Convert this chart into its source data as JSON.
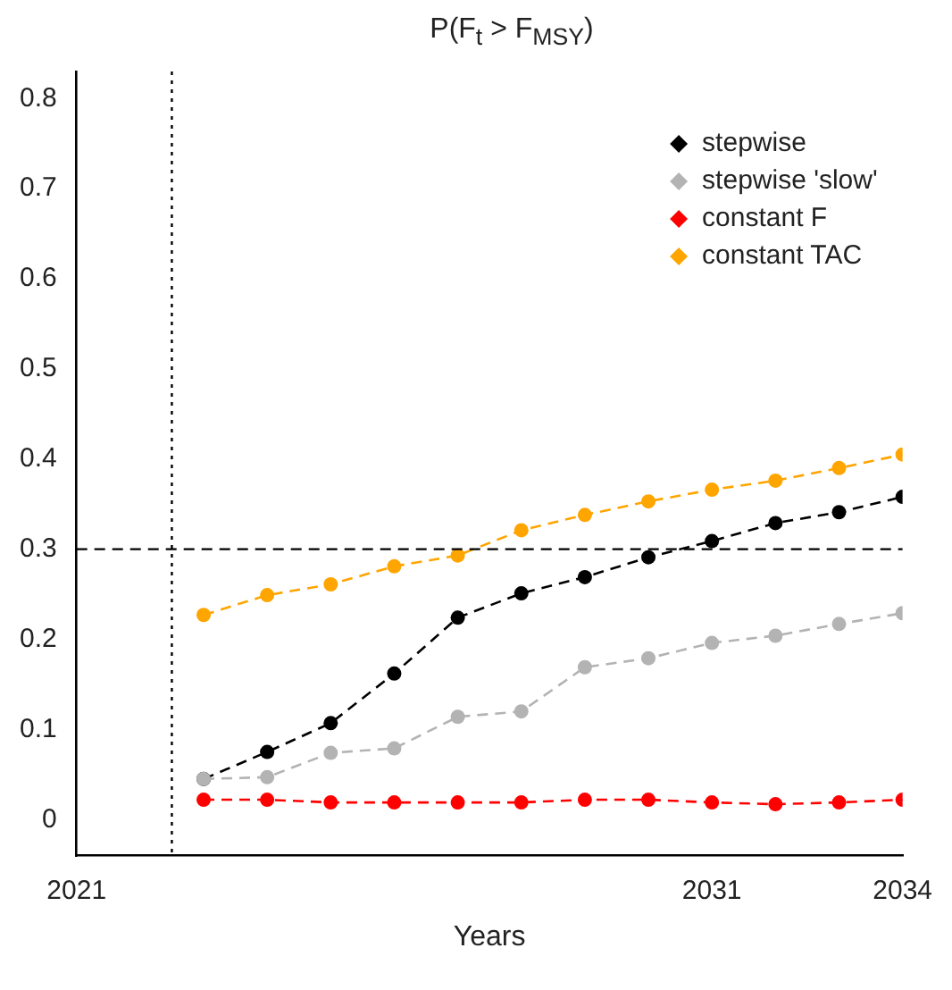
{
  "chart_data": {
    "type": "line",
    "title": "P(F$_{t}$ > F$_{MSY}$)",
    "xlabel": "Years",
    "x": [
      2023,
      2024,
      2025,
      2026,
      2027,
      2028,
      2029,
      2030,
      2031,
      2032,
      2033,
      2034
    ],
    "series": [
      {
        "name": "stepwise",
        "color": "#000000",
        "values": [
          0.045,
          0.075,
          0.107,
          0.162,
          0.224,
          0.251,
          0.269,
          0.291,
          0.309,
          0.329,
          0.341,
          0.358
        ]
      },
      {
        "name": "stepwise 'slow'",
        "color": "#b3b3b3",
        "values": [
          0.045,
          0.047,
          0.074,
          0.079,
          0.114,
          0.12,
          0.169,
          0.179,
          0.196,
          0.204,
          0.217,
          0.229
        ]
      },
      {
        "name": "constant F",
        "color": "#ff0000",
        "values": [
          0.022,
          0.022,
          0.019,
          0.019,
          0.019,
          0.019,
          0.022,
          0.022,
          0.019,
          0.017,
          0.019,
          0.022
        ]
      },
      {
        "name": "constant TAC",
        "color": "#ffa500",
        "values": [
          0.227,
          0.249,
          0.261,
          0.281,
          0.293,
          0.321,
          0.338,
          0.353,
          0.366,
          0.376,
          0.39,
          0.405
        ]
      }
    ],
    "xlim": [
      2021,
      2034
    ],
    "xticks": [
      2021,
      2031,
      2034
    ],
    "ylim": [
      -0.04,
      0.83
    ],
    "yticks": [
      0,
      0.1,
      0.2,
      0.3,
      0.4,
      0.5,
      0.6,
      0.7,
      0.8
    ],
    "ref_lines": [
      {
        "axis": "y",
        "value": 0.3,
        "line_style": "dashed",
        "color": "#000000"
      },
      {
        "axis": "x",
        "value": 2022.5,
        "line_style": "dotted",
        "color": "#000000"
      }
    ],
    "grid": false,
    "legend": "top right",
    "marker": "circle",
    "line_style": "dashed"
  }
}
